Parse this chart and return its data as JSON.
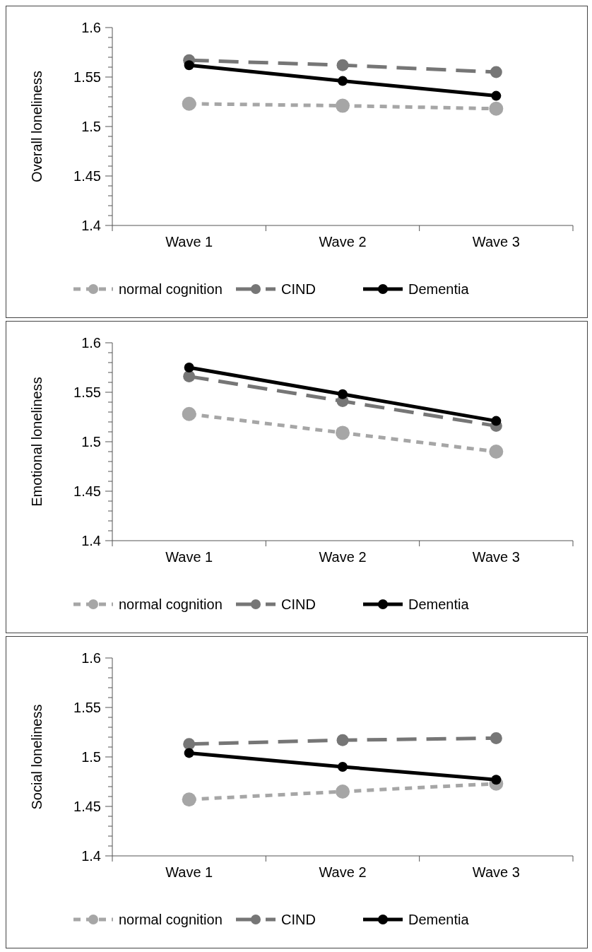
{
  "chart_data": [
    {
      "type": "line",
      "ylabel": "Overall loneliness",
      "categories": [
        "Wave 1",
        "Wave 2",
        "Wave 3"
      ],
      "ylim": [
        1.4,
        1.6
      ],
      "yticks": [
        1.4,
        {
          "value": 1.41,
          "label": null
        },
        {
          "value": 1.42,
          "label": null
        },
        {
          "value": 1.43,
          "label": null
        },
        {
          "value": 1.44,
          "label": null
        },
        1.45,
        {
          "value": 1.46,
          "label": null
        },
        {
          "value": 1.47,
          "label": null
        },
        {
          "value": 1.48,
          "label": null
        },
        {
          "value": 1.49,
          "label": null
        },
        1.5,
        {
          "value": 1.51,
          "label": null
        },
        {
          "value": 1.52,
          "label": null
        },
        {
          "value": 1.53,
          "label": null
        },
        {
          "value": 1.54,
          "label": null
        },
        1.55,
        {
          "value": 1.56,
          "label": null
        },
        {
          "value": 1.57,
          "label": null
        },
        {
          "value": 1.58,
          "label": null
        },
        {
          "value": 1.59,
          "label": null
        },
        1.6
      ],
      "marker": "circle",
      "legend": "bottom",
      "series": [
        {
          "name": "normal cognition",
          "color": "#a6a6a6",
          "line_style": "dotted",
          "values": [
            1.523,
            1.521,
            1.518
          ]
        },
        {
          "name": "CIND",
          "color": "#767676",
          "line_style": "dashed",
          "values": [
            1.567,
            1.562,
            1.555
          ]
        },
        {
          "name": "Dementia",
          "color": "#000000",
          "line_style": "solid",
          "values": [
            1.562,
            1.546,
            1.531
          ]
        }
      ]
    },
    {
      "type": "line",
      "ylabel": "Emotional loneliness",
      "categories": [
        "Wave 1",
        "Wave 2",
        "Wave 3"
      ],
      "ylim": [
        1.4,
        1.6
      ],
      "yticks": [
        1.4,
        {
          "value": 1.41,
          "label": null
        },
        {
          "value": 1.42,
          "label": null
        },
        {
          "value": 1.43,
          "label": null
        },
        {
          "value": 1.44,
          "label": null
        },
        1.45,
        {
          "value": 1.46,
          "label": null
        },
        {
          "value": 1.47,
          "label": null
        },
        {
          "value": 1.48,
          "label": null
        },
        {
          "value": 1.49,
          "label": null
        },
        1.5,
        {
          "value": 1.51,
          "label": null
        },
        {
          "value": 1.52,
          "label": null
        },
        {
          "value": 1.53,
          "label": null
        },
        {
          "value": 1.54,
          "label": null
        },
        1.55,
        {
          "value": 1.56,
          "label": null
        },
        {
          "value": 1.57,
          "label": null
        },
        {
          "value": 1.58,
          "label": null
        },
        {
          "value": 1.59,
          "label": null
        },
        1.6
      ],
      "marker": "circle",
      "legend": "bottom",
      "series": [
        {
          "name": "normal cognition",
          "color": "#a6a6a6",
          "line_style": "dotted",
          "values": [
            1.528,
            1.509,
            1.49
          ]
        },
        {
          "name": "CIND",
          "color": "#767676",
          "line_style": "dashed",
          "values": [
            1.566,
            1.541,
            1.516
          ]
        },
        {
          "name": "Dementia",
          "color": "#000000",
          "line_style": "solid",
          "values": [
            1.575,
            1.548,
            1.521
          ]
        }
      ]
    },
    {
      "type": "line",
      "ylabel": "Social loneliness",
      "categories": [
        "Wave 1",
        "Wave 2",
        "Wave 3"
      ],
      "ylim": [
        1.4,
        1.6
      ],
      "yticks": [
        1.4,
        {
          "value": 1.41,
          "label": null
        },
        {
          "value": 1.42,
          "label": null
        },
        {
          "value": 1.43,
          "label": null
        },
        {
          "value": 1.44,
          "label": null
        },
        1.45,
        {
          "value": 1.46,
          "label": null
        },
        {
          "value": 1.47,
          "label": null
        },
        {
          "value": 1.48,
          "label": null
        },
        {
          "value": 1.49,
          "label": null
        },
        1.5,
        {
          "value": 1.51,
          "label": null
        },
        {
          "value": 1.52,
          "label": null
        },
        {
          "value": 1.53,
          "label": null
        },
        {
          "value": 1.54,
          "label": null
        },
        1.55,
        {
          "value": 1.56,
          "label": null
        },
        {
          "value": 1.57,
          "label": null
        },
        {
          "value": 1.58,
          "label": null
        },
        {
          "value": 1.59,
          "label": null
        },
        1.6
      ],
      "marker": "circle",
      "legend": "bottom",
      "series": [
        {
          "name": "normal cognition",
          "color": "#a6a6a6",
          "line_style": "dotted",
          "values": [
            1.457,
            1.465,
            1.473
          ]
        },
        {
          "name": "CIND",
          "color": "#767676",
          "line_style": "dashed",
          "values": [
            1.513,
            1.517,
            1.519
          ]
        },
        {
          "name": "Dementia",
          "color": "#000000",
          "line_style": "solid",
          "values": [
            1.504,
            1.49,
            1.477
          ]
        }
      ]
    }
  ]
}
